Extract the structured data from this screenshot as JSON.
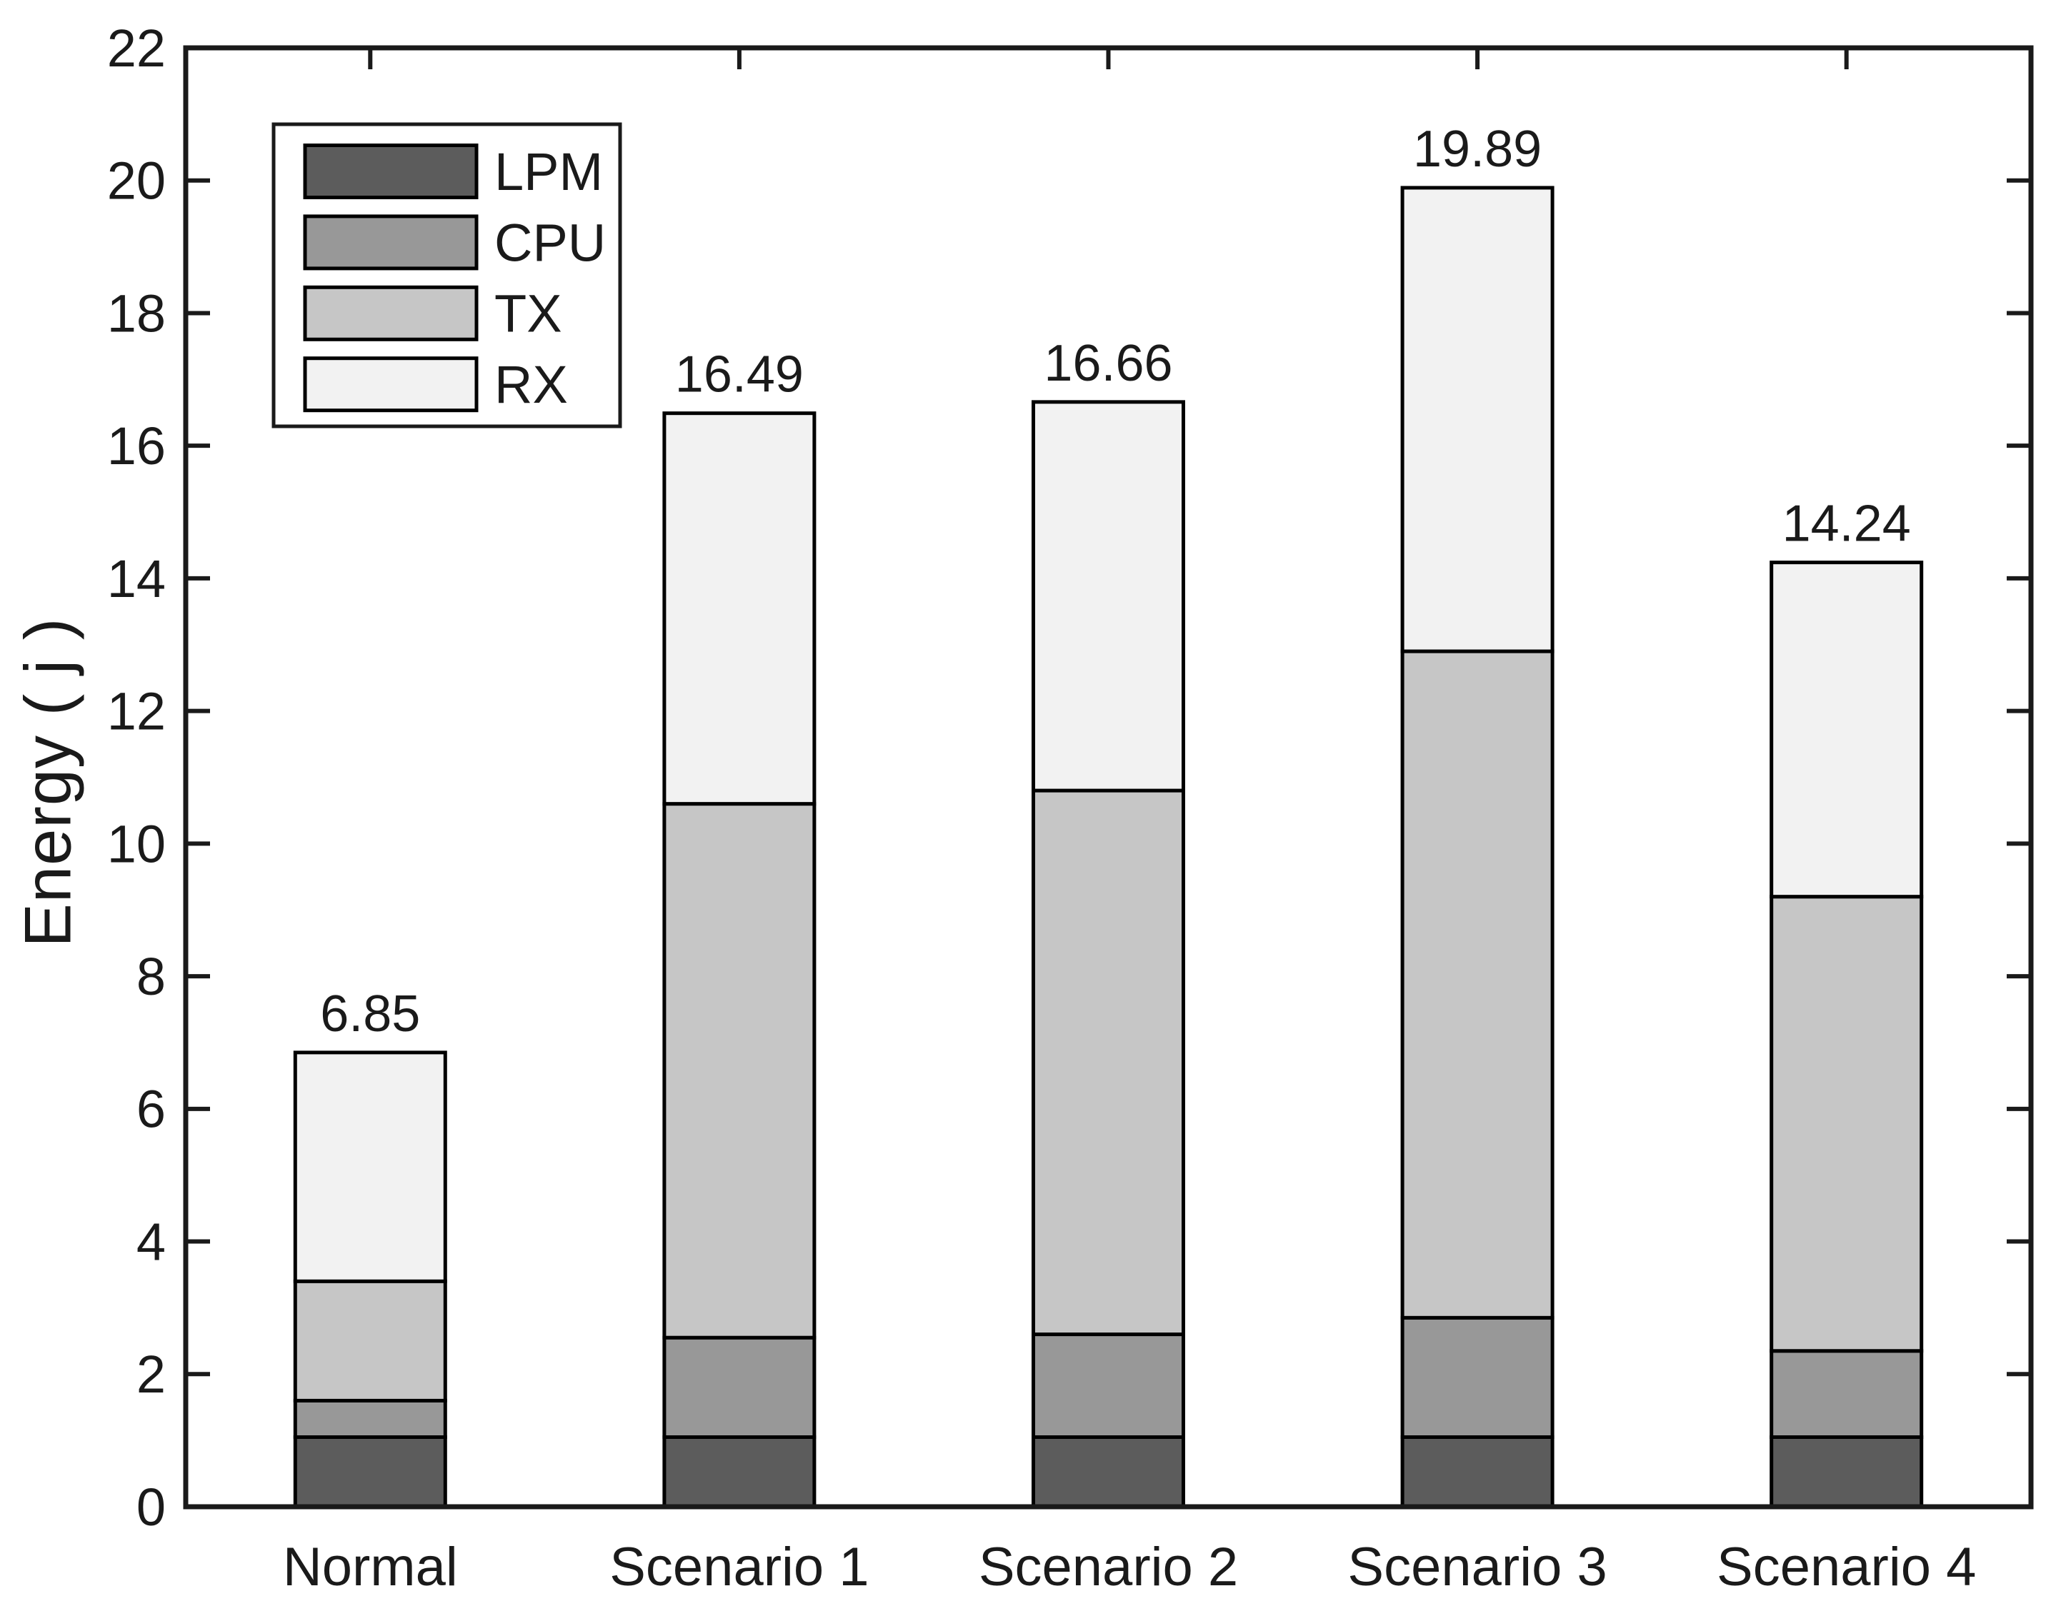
{
  "figure": {
    "background": "#ffffff",
    "axis_color": "#1a1a1a",
    "bar_edge_color": "#000000"
  },
  "chart_data": {
    "type": "bar",
    "stacked": true,
    "title": "",
    "xlabel": "",
    "ylabel": "Energy ( j )",
    "ylim": [
      0,
      22
    ],
    "ytick_step": 2,
    "grid": false,
    "legend_position": "top-left-inside",
    "categories": [
      "Normal",
      "Scenario 1",
      "Scenario 2",
      "Scenario 3",
      "Scenario 4"
    ],
    "series": [
      {
        "name": "LPM",
        "color": "#5c5c5c",
        "values": [
          1.05,
          1.05,
          1.05,
          1.05,
          1.05
        ]
      },
      {
        "name": "CPU",
        "color": "#989898",
        "values": [
          0.55,
          1.5,
          1.55,
          1.8,
          1.3
        ]
      },
      {
        "name": "TX",
        "color": "#c6c6c6",
        "values": [
          1.8,
          8.05,
          8.2,
          10.05,
          6.85
        ]
      },
      {
        "name": "RX",
        "color": "#f2f2f2",
        "values": [
          3.45,
          5.89,
          5.86,
          6.99,
          5.04
        ]
      }
    ],
    "bar_total_labels": [
      "6.85",
      "16.49",
      "16.66",
      "19.89",
      "14.24"
    ],
    "legend_entries": [
      "LPM",
      "CPU",
      "TX",
      "RX"
    ]
  }
}
